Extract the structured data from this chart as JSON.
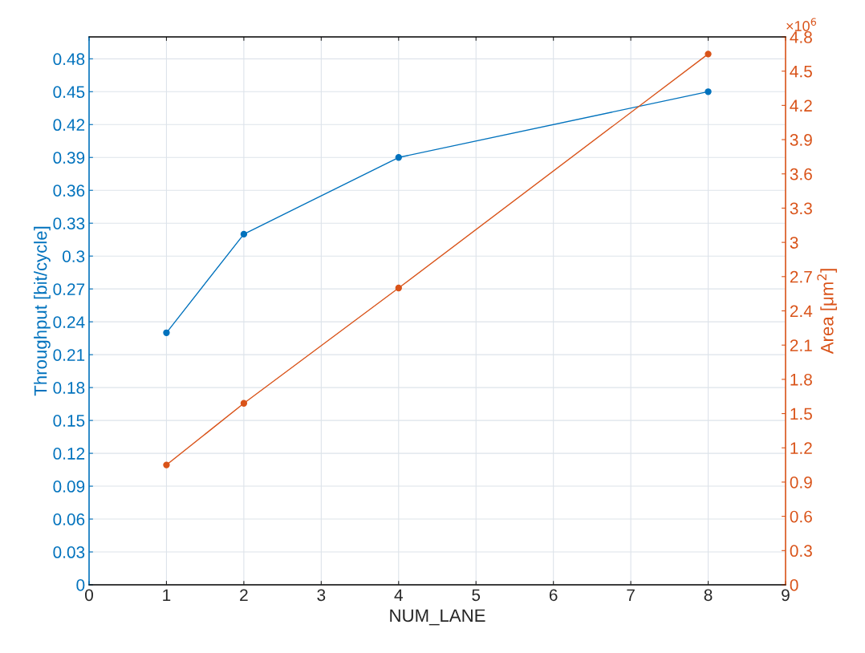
{
  "chart_data": {
    "type": "line",
    "xlabel": "NUM_LANE",
    "ylabel": "Throughput [bit/cycle]",
    "y2label": "Area [μm$^{2}$]",
    "series": [
      {
        "color": "#0072bd",
        "x": [
          1,
          2,
          4,
          8
        ],
        "values": [
          0.23,
          0.32,
          0.39,
          0.45
        ]
      },
      {
        "color": "#d95319",
        "x": [
          1,
          2,
          4,
          8
        ],
        "values": [
          1.05,
          1.59,
          2.6,
          4.65
        ],
        "axis": "y2"
      }
    ],
    "xlim": [
      0,
      9
    ],
    "xticks": [
      0,
      1,
      2,
      3,
      4,
      5,
      6,
      7,
      8,
      9
    ],
    "ylim": [
      0,
      0.5
    ],
    "yticks": [
      0,
      0.03,
      0.06,
      0.09,
      0.12,
      0.15,
      0.18,
      0.21,
      0.24,
      0.27,
      0.3,
      0.33,
      0.36,
      0.39,
      0.42,
      0.45,
      0.48
    ],
    "y2lim": [
      0,
      4.8
    ],
    "y2ticks": [
      0,
      0.3,
      0.6,
      0.9,
      1.2,
      1.5,
      1.8,
      2.1,
      2.4,
      2.7,
      3,
      3.3,
      3.6,
      3.9,
      4.2,
      4.5,
      4.8
    ],
    "annotations": [
      "×10$^{6}$"
    ],
    "grid": true,
    "marker": "circle",
    "line_style": "solid",
    "legend": false
  }
}
